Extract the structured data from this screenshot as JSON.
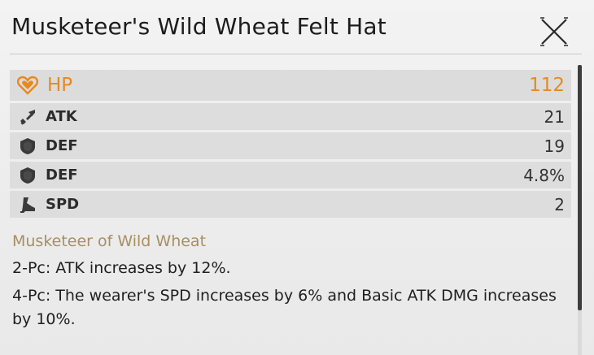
{
  "window": {
    "title": "Musketeer's Wild Wheat Felt Hat",
    "close_icon": "close-x-icon"
  },
  "main_stat": {
    "label": "HP",
    "value": "112",
    "icon": "heart-icon",
    "color": "#e8891d"
  },
  "sub_stats": [
    {
      "label": "ATK",
      "value": "21",
      "icon": "sword-icon"
    },
    {
      "label": "DEF",
      "value": "19",
      "icon": "shield-icon"
    },
    {
      "label": "DEF",
      "value": "4.8%",
      "icon": "shield-icon"
    },
    {
      "label": "SPD",
      "value": "2",
      "icon": "boot-icon"
    }
  ],
  "set": {
    "name": "Musketeer of Wild Wheat",
    "name_color": "#a88f62",
    "effects": [
      "2-Pc: ATK increases by 12%.",
      "4-Pc: The wearer's SPD increases by 6% and Basic ATK DMG increases by 10%."
    ]
  },
  "scroll": {
    "position_fraction": 0.0
  }
}
